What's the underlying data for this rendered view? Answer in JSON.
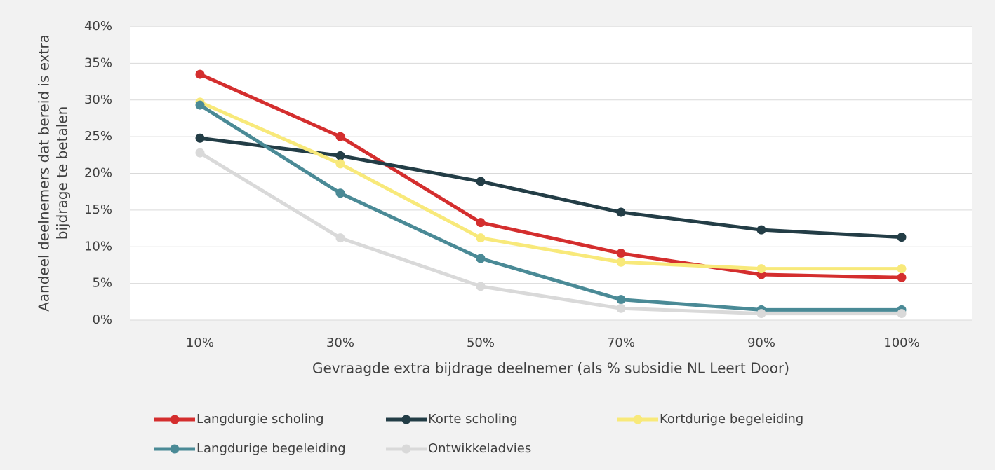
{
  "chart_data": {
    "type": "line",
    "categories": [
      "10%",
      "30%",
      "50%",
      "70%",
      "90%",
      "100%"
    ],
    "xlabel": "Gevraagde extra bijdrage deelnemer (als % subsidie NL Leert Door)",
    "ylabel": [
      "Aandeel deelnemers dat bereid is extra",
      "bijdrage te betalen"
    ],
    "ylim": [
      0,
      40
    ],
    "yticks": [
      {
        "value": 0,
        "label": "0%"
      },
      {
        "value": 5,
        "label": "5%"
      },
      {
        "value": 10,
        "label": "10%"
      },
      {
        "value": 15,
        "label": "15%"
      },
      {
        "value": 20,
        "label": "20%"
      },
      {
        "value": 25,
        "label": "25%"
      },
      {
        "value": 30,
        "label": "30%"
      },
      {
        "value": 35,
        "label": "35%"
      },
      {
        "value": 40,
        "label": "40%"
      }
    ],
    "grid": true,
    "legend": "bottom",
    "series": [
      {
        "name": "Langdurgie scholing",
        "color": "#d42e2e",
        "values": [
          33.5,
          25,
          13.3,
          9.1,
          6.2,
          5.8
        ]
      },
      {
        "name": "Korte scholing",
        "color": "#233d46",
        "values": [
          24.8,
          22.4,
          18.9,
          14.7,
          12.3,
          11.3
        ]
      },
      {
        "name": "Kortdurige begeleiding",
        "color": "#f8e97a",
        "values": [
          29.7,
          21.3,
          11.2,
          7.9,
          7.0,
          7.0
        ]
      },
      {
        "name": "Langdurige begeleiding",
        "color": "#4a8a96",
        "values": [
          29.3,
          17.3,
          8.4,
          2.8,
          1.4,
          1.4
        ]
      },
      {
        "name": "Ontwikkeladvies",
        "color": "#d9d9d9",
        "values": [
          22.8,
          11.2,
          4.6,
          1.6,
          0.9,
          0.9
        ]
      }
    ]
  }
}
